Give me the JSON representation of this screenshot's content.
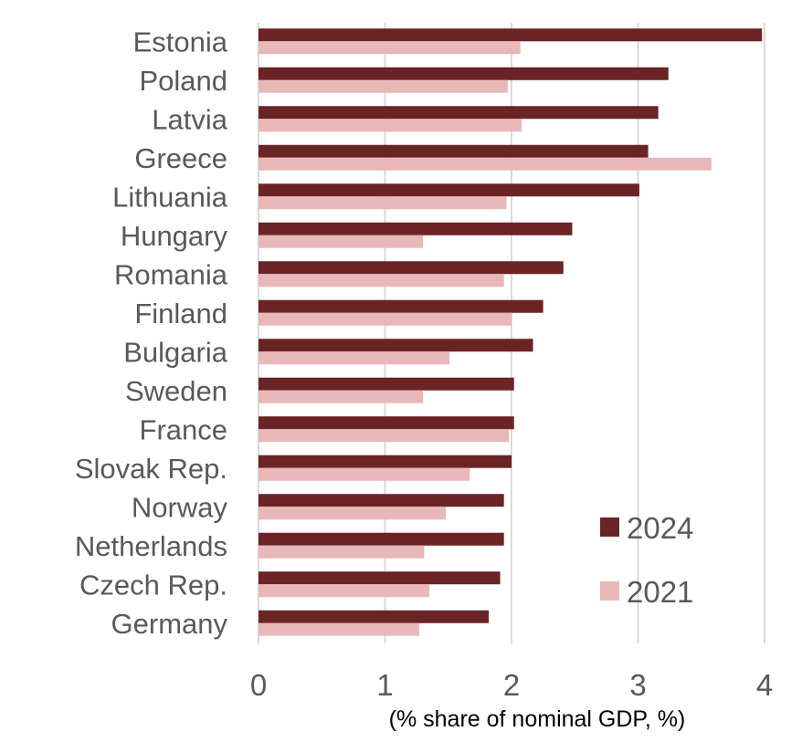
{
  "chart_data": {
    "type": "bar",
    "orientation": "horizontal",
    "categories": [
      "Estonia",
      "Poland",
      "Latvia",
      "Greece",
      "Lithuania",
      "Hungary",
      "Romania",
      "Finland",
      "Bulgaria",
      "Sweden",
      "France",
      "Slovak Rep.",
      "Norway",
      "Netherlands",
      "Czech Rep.",
      "Germany"
    ],
    "series": [
      {
        "name": "2024",
        "color": "#6b2426",
        "values": [
          3.98,
          3.24,
          3.16,
          3.08,
          3.01,
          2.48,
          2.41,
          2.25,
          2.17,
          2.02,
          2.02,
          2.0,
          1.94,
          1.94,
          1.91,
          1.82
        ]
      },
      {
        "name": "2021",
        "color": "#e8b8b8",
        "values": [
          2.07,
          1.97,
          2.08,
          3.58,
          1.96,
          1.3,
          1.94,
          2.0,
          1.51,
          1.3,
          1.98,
          1.67,
          1.48,
          1.31,
          1.35,
          1.27
        ]
      }
    ],
    "xlim": [
      0,
      4
    ],
    "xticks": [
      "0",
      "1",
      "2",
      "3",
      "4"
    ],
    "xlabel": "(% share of nominal GDP, %)",
    "title": "",
    "grid": "vertical",
    "legend": {
      "placement": "bottom-right"
    }
  }
}
